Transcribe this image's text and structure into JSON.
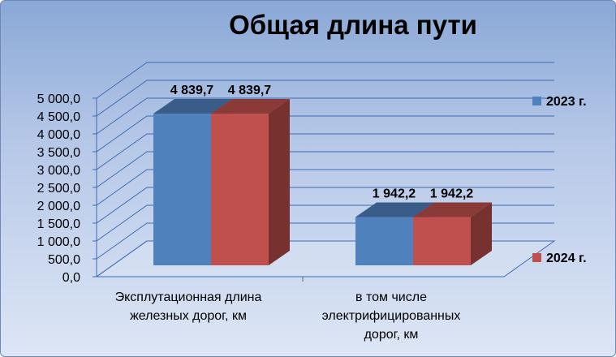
{
  "chart_data": {
    "type": "bar",
    "title": "Общая длина пути",
    "categories": [
      [
        "Эксплутационная длина",
        "железных дорог, км"
      ],
      [
        "в том числе",
        "электрифицированных",
        "дорог, км"
      ]
    ],
    "series": [
      {
        "name": "2023 г.",
        "values": [
          4839.7,
          1942.2
        ],
        "labels": [
          "4 839,7",
          "1 942,2"
        ],
        "color": "#4f81bd"
      },
      {
        "name": "2024 г.",
        "values": [
          4839.7,
          1942.2
        ],
        "labels": [
          "4 839,7",
          "1 942,2"
        ],
        "color": "#c0504d"
      }
    ],
    "ylim": [
      0,
      5000
    ],
    "yticks": [
      "0,0",
      "500,0",
      "1 000,0",
      "1 500,0",
      "2 000,0",
      "2 500,0",
      "3 000,0",
      "3 500,0",
      "4 000,0",
      "4 500,0",
      "5 000,0"
    ],
    "grid": true,
    "legend_position": "right",
    "style": "3d-column"
  }
}
